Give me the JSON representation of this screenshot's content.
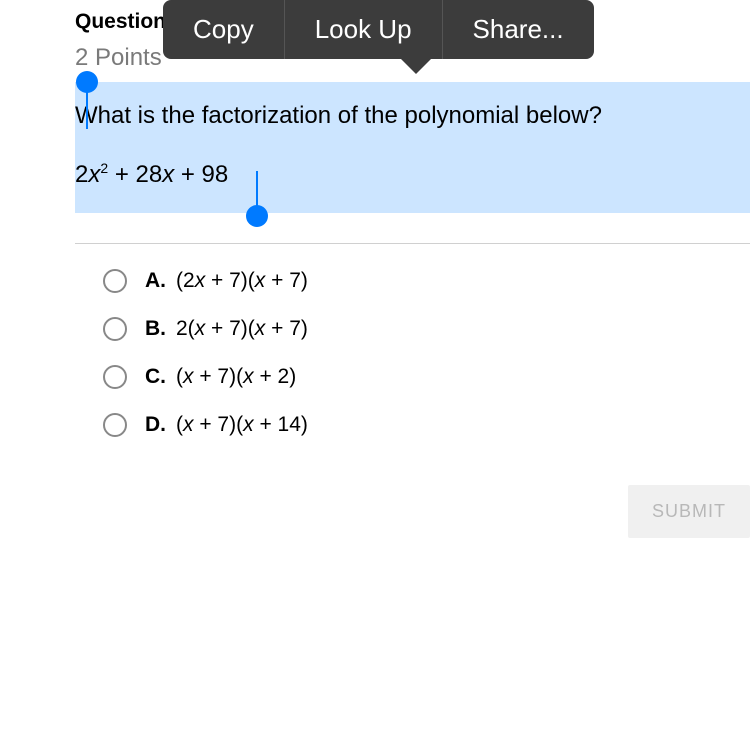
{
  "context_menu": {
    "copy": "Copy",
    "lookup": "Look Up",
    "share": "Share..."
  },
  "question": {
    "label": "Question",
    "points": "2 Points",
    "text": "What is the factorization of the polynomial below?",
    "polynomial_coef1": "2",
    "polynomial_var1": "x",
    "polynomial_exp": "2",
    "polynomial_mid": " + 28",
    "polynomial_var2": "x",
    "polynomial_end": " + 98"
  },
  "options": [
    {
      "label": "A.",
      "pre1": "(2",
      "x1": "x",
      "mid1": " + 7)(",
      "x2": "x",
      "post": " + 7)"
    },
    {
      "label": "B.",
      "pre1": "2(",
      "x1": "x",
      "mid1": " + 7)(",
      "x2": "x",
      "post": " + 7)"
    },
    {
      "label": "C.",
      "pre1": "(",
      "x1": "x",
      "mid1": " + 7)(",
      "x2": "x",
      "post": " + 2)"
    },
    {
      "label": "D.",
      "pre1": "(",
      "x1": "x",
      "mid1": " + 7)(",
      "x2": "x",
      "post": " + 14)"
    }
  ],
  "submit": "SUBMIT",
  "colors": {
    "selection_bg": "#cce5ff",
    "selection_handle": "#007aff",
    "context_menu_bg": "#3c3c3c",
    "points_color": "#7a7a7a",
    "submit_bg": "#f0f0f0",
    "submit_text": "#b8b8b8"
  }
}
